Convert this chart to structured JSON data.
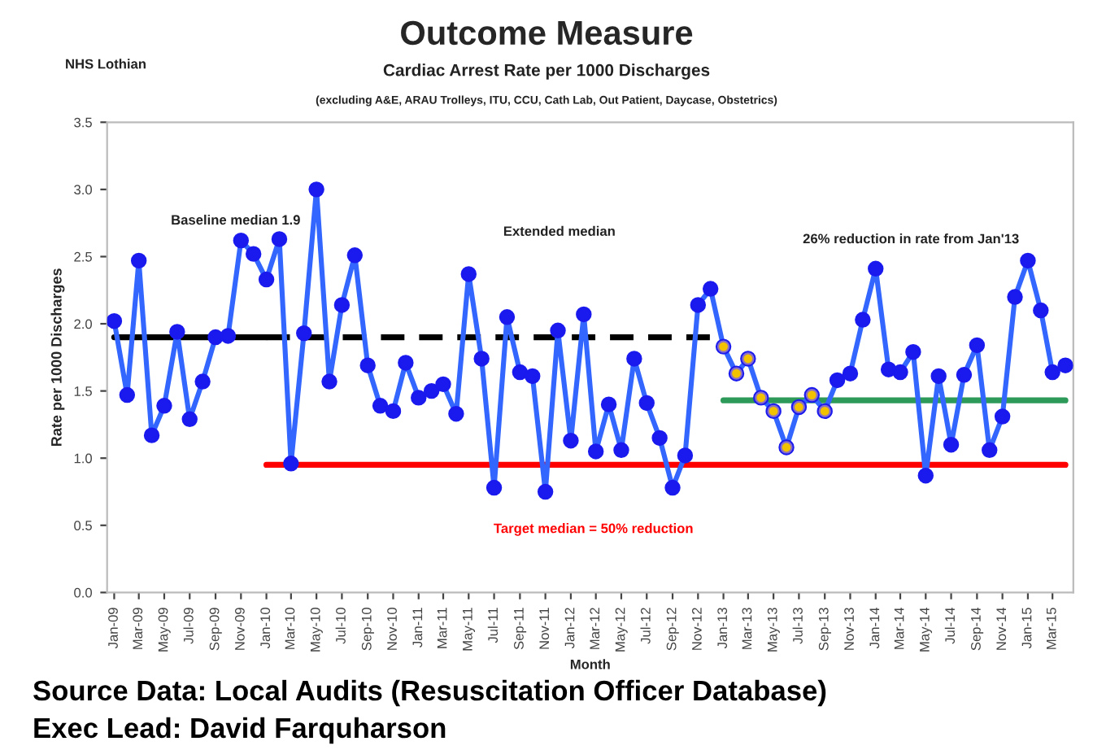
{
  "chart_data": {
    "type": "line",
    "title": "Outcome Measure",
    "subtitle": "Cardiac Arrest Rate per 1000 Discharges",
    "xlabel": "Month",
    "ylabel": "Rate per 1000 Discharges",
    "annotations": [
      "NHS Lothian",
      "(excluding A&E, ARAU Trolleys, ITU, CCU, Cath Lab, Out Patient, Daycase, Obstetrics)",
      "Baseline median 1.9",
      "Extended median",
      "26% reduction in rate from Jan'13",
      "Target median = 50% reduction",
      "Source Data: Local Audits (Resuscitation Officer Database)",
      "Exec Lead: David Farquharson"
    ],
    "ylim": [
      0,
      3.5
    ],
    "yticks": [
      {
        "value": 0,
        "label": "0.0"
      },
      {
        "value": 0.5,
        "label": "0.5"
      },
      {
        "value": 1,
        "label": "1.0"
      },
      {
        "value": 1.5,
        "label": "1.5"
      },
      {
        "value": 2,
        "label": "2.0"
      },
      {
        "value": 2.5,
        "label": "2.5"
      },
      {
        "value": 3,
        "label": "3.0"
      },
      {
        "value": 3.5,
        "label": "3.5"
      }
    ],
    "xlim": [
      "2008-12-15",
      "2015-04-20"
    ],
    "xticks": [
      {
        "value": "2009-01",
        "label": "Jan-09"
      },
      {
        "value": "2009-03",
        "label": "Mar-09"
      },
      {
        "value": "2009-05",
        "label": "May-09"
      },
      {
        "value": "2009-07",
        "label": "Jul-09"
      },
      {
        "value": "2009-09",
        "label": "Sep-09"
      },
      {
        "value": "2009-11",
        "label": "Nov-09"
      },
      {
        "value": "2010-01",
        "label": "Jan-10"
      },
      {
        "value": "2010-03",
        "label": "Mar-10"
      },
      {
        "value": "2010-05",
        "label": "May-10"
      },
      {
        "value": "2010-07",
        "label": "Jul-10"
      },
      {
        "value": "2010-09",
        "label": "Sep-10"
      },
      {
        "value": "2010-11",
        "label": "Nov-10"
      },
      {
        "value": "2011-01",
        "label": "Jan-11"
      },
      {
        "value": "2011-03",
        "label": "Mar-11"
      },
      {
        "value": "2011-05",
        "label": "May-11"
      },
      {
        "value": "2011-07",
        "label": "Jul-11"
      },
      {
        "value": "2011-09",
        "label": "Sep-11"
      },
      {
        "value": "2011-11",
        "label": "Nov-11"
      },
      {
        "value": "2012-01",
        "label": "Jan-12"
      },
      {
        "value": "2012-03",
        "label": "Mar-12"
      },
      {
        "value": "2012-05",
        "label": "May-12"
      },
      {
        "value": "2012-07",
        "label": "Jul-12"
      },
      {
        "value": "2012-09",
        "label": "Sep-12"
      },
      {
        "value": "2012-11",
        "label": "Nov-12"
      },
      {
        "value": "2013-01",
        "label": "Jan-13"
      },
      {
        "value": "2013-03",
        "label": "Mar-13"
      },
      {
        "value": "2013-05",
        "label": "May-13"
      },
      {
        "value": "2013-07",
        "label": "Jul-13"
      },
      {
        "value": "2013-09",
        "label": "Sep-13"
      },
      {
        "value": "2013-11",
        "label": "Nov-13"
      },
      {
        "value": "2014-01",
        "label": "Jan-14"
      },
      {
        "value": "2014-03",
        "label": "Mar-14"
      },
      {
        "value": "2014-05",
        "label": "May-14"
      },
      {
        "value": "2014-07",
        "label": "Jul-14"
      },
      {
        "value": "2014-09",
        "label": "Sep-14"
      },
      {
        "value": "2014-11",
        "label": "Nov-14"
      },
      {
        "value": "2015-01",
        "label": "Jan-15"
      },
      {
        "value": "2015-03",
        "label": "Mar-15"
      }
    ],
    "series": [
      {
        "color": "#000000",
        "line_style": "solid",
        "marker": "none",
        "x": [
          "2009-01",
          "2010-01"
        ],
        "values": [
          1.9,
          1.9
        ]
      },
      {
        "color": "#000000",
        "line_style": "dashed",
        "marker": "none",
        "x": [
          "2010-01",
          "2013-01"
        ],
        "values": [
          1.9,
          1.9
        ]
      },
      {
        "color": "#ff0000",
        "line_style": "solid",
        "marker": "none",
        "x": [
          "2010-01",
          "2015-04"
        ],
        "values": [
          0.95,
          0.95
        ]
      },
      {
        "color": "#2e9a5a",
        "line_style": "solid",
        "marker": "none",
        "x": [
          "2013-01",
          "2015-04"
        ],
        "values": [
          1.43,
          1.43
        ]
      },
      {
        "color": "#3366ff",
        "line_style": "solid",
        "marker": "circle",
        "x": [
          "2009-01",
          "2009-02",
          "2009-03",
          "2009-04",
          "2009-05",
          "2009-06",
          "2009-07",
          "2009-08",
          "2009-09",
          "2009-10",
          "2009-11",
          "2009-12",
          "2010-01",
          "2010-02",
          "2010-03",
          "2010-04",
          "2010-05",
          "2010-06",
          "2010-07",
          "2010-08",
          "2010-09",
          "2010-10",
          "2010-11",
          "2010-12",
          "2011-01",
          "2011-02",
          "2011-03",
          "2011-04",
          "2011-05",
          "2011-06",
          "2011-07",
          "2011-08",
          "2011-09",
          "2011-10",
          "2011-11",
          "2011-12",
          "2012-01",
          "2012-02",
          "2012-03",
          "2012-04",
          "2012-05",
          "2012-06",
          "2012-07",
          "2012-08",
          "2012-09",
          "2012-10",
          "2012-11",
          "2012-12",
          "2013-01",
          "2013-02",
          "2013-03",
          "2013-04",
          "2013-05",
          "2013-06",
          "2013-07",
          "2013-08",
          "2013-09",
          "2013-10",
          "2013-11",
          "2013-12",
          "2014-01",
          "2014-02",
          "2014-03",
          "2014-04",
          "2014-05",
          "2014-06",
          "2014-07",
          "2014-08",
          "2014-09",
          "2014-10",
          "2014-11",
          "2014-12",
          "2015-01",
          "2015-02",
          "2015-03",
          "2015-04"
        ],
        "values": [
          2.02,
          1.47,
          2.47,
          1.17,
          1.39,
          1.94,
          1.29,
          1.57,
          1.9,
          1.91,
          2.62,
          2.52,
          2.33,
          2.63,
          0.96,
          1.93,
          3.0,
          1.57,
          2.14,
          2.51,
          1.69,
          1.39,
          1.35,
          1.71,
          1.45,
          1.5,
          1.55,
          1.33,
          2.37,
          1.74,
          0.78,
          2.05,
          1.64,
          1.61,
          0.75,
          1.95,
          1.13,
          2.07,
          1.05,
          1.4,
          1.06,
          1.74,
          1.41,
          1.15,
          0.78,
          1.02,
          2.14,
          2.26,
          1.83,
          1.63,
          1.74,
          1.45,
          1.35,
          1.08,
          1.38,
          1.47,
          1.35,
          1.58,
          1.63,
          2.03,
          2.41,
          1.66,
          1.64,
          1.79,
          0.87,
          1.61,
          1.1,
          1.62,
          1.84,
          1.06,
          1.31,
          2.2,
          2.47,
          2.1,
          1.64,
          1.69
        ]
      },
      {
        "type": "scatter",
        "color": "#f2c200",
        "marker": "circle",
        "x": [
          "2013-01",
          "2013-02",
          "2013-03",
          "2013-04",
          "2013-05",
          "2013-06",
          "2013-07",
          "2013-08",
          "2013-09"
        ],
        "values": [
          1.83,
          1.63,
          1.74,
          1.45,
          1.35,
          1.08,
          1.38,
          1.47,
          1.35
        ]
      }
    ]
  }
}
